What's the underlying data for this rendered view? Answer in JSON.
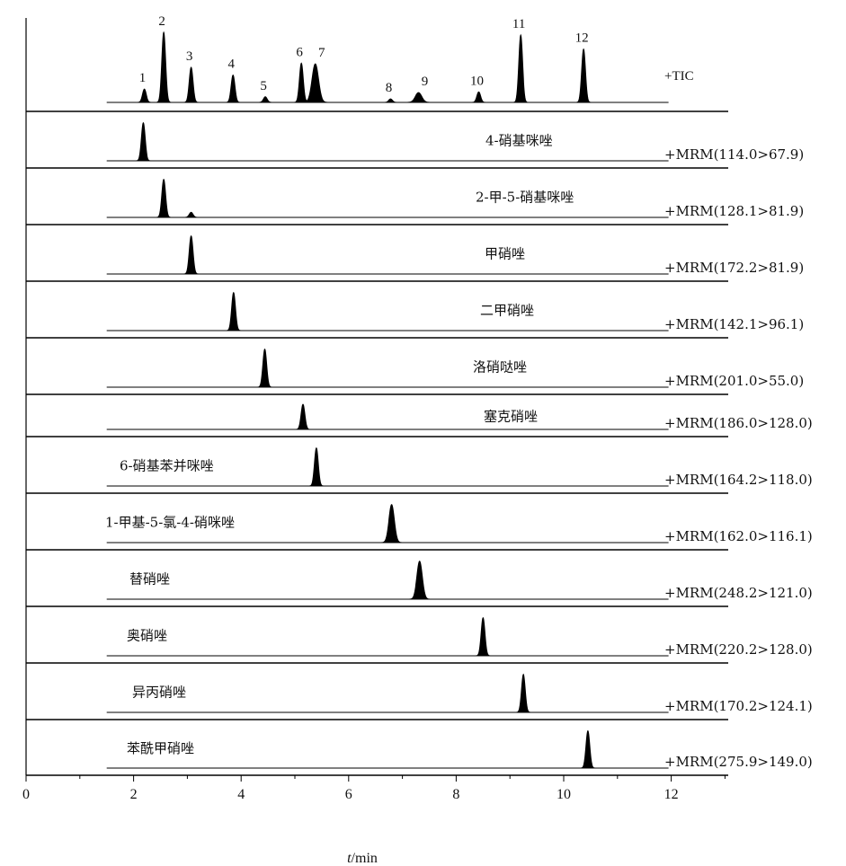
{
  "chart_data": {
    "type": "line",
    "x_axis": {
      "label_italic": "t",
      "label_rest": "/min",
      "range": [
        0,
        13.2
      ],
      "ticks": [
        0,
        2,
        4,
        6,
        8,
        10,
        12
      ],
      "tick_labels": [
        "0",
        "2",
        "4",
        "6",
        "8",
        "10",
        "12"
      ],
      "minor_tick_step": 1
    },
    "baseline_range": [
      1.5,
      11.95
    ],
    "tic": {
      "label": "+TIC",
      "peaks": [
        {
          "id": "1",
          "rt": 2.2,
          "height": 0.19
        },
        {
          "id": "2",
          "rt": 2.56,
          "height": 1.0
        },
        {
          "id": "3",
          "rt": 3.07,
          "height": 0.5
        },
        {
          "id": "4",
          "rt": 3.85,
          "height": 0.39
        },
        {
          "id": "5",
          "rt": 4.45,
          "height": 0.08
        },
        {
          "id": "6",
          "rt": 5.12,
          "height": 0.56
        },
        {
          "id": "7",
          "rt": 5.38,
          "height": 0.55
        },
        {
          "id": "8",
          "rt": 6.78,
          "height": 0.05
        },
        {
          "id": "9",
          "rt": 7.3,
          "height": 0.14
        },
        {
          "id": "10",
          "rt": 8.42,
          "height": 0.15
        },
        {
          "id": "11",
          "rt": 9.2,
          "height": 0.96
        },
        {
          "id": "12",
          "rt": 10.37,
          "height": 0.76
        }
      ]
    },
    "series": [
      {
        "name": "4-硝基咪唑",
        "transition": "+MRM(114.0>67.9)",
        "rt": 2.18,
        "height": 0.9
      },
      {
        "name": "2-甲-5-硝基咪唑",
        "transition": "+MRM(128.1>81.9)",
        "rt": 2.56,
        "height": 0.9,
        "minor_peak": {
          "rt": 3.07,
          "height": 0.12
        }
      },
      {
        "name": "甲硝唑",
        "transition": "+MRM(172.2>81.9)",
        "rt": 3.07,
        "height": 0.9
      },
      {
        "name": "二甲硝唑",
        "transition": "+MRM(142.1>96.1)",
        "rt": 3.86,
        "height": 0.9
      },
      {
        "name": "洛硝哒唑",
        "transition": "+MRM(201.0>55.0)",
        "rt": 4.44,
        "height": 0.9
      },
      {
        "name": "塞克硝唑",
        "transition": "+MRM(186.0>128.0)",
        "rt": 5.15,
        "height": 0.9
      },
      {
        "name": "6-硝基苯并咪唑",
        "transition": "+MRM(164.2>118.0)",
        "rt": 5.4,
        "height": 0.9
      },
      {
        "name": "1-甲基-5-氯-4-硝咪唑",
        "transition": "+MRM(162.0>116.1)",
        "rt": 6.8,
        "height": 0.9
      },
      {
        "name": "替硝唑",
        "transition": "+MRM(248.2>121.0)",
        "rt": 7.32,
        "height": 0.9
      },
      {
        "name": "奥硝唑",
        "transition": "+MRM(220.2>128.0)",
        "rt": 8.5,
        "height": 0.9
      },
      {
        "name": "异丙硝唑",
        "transition": "+MRM(170.2>124.1)",
        "rt": 9.25,
        "height": 0.9
      },
      {
        "name": "苯酰甲硝唑",
        "transition": "+MRM(275.9>149.0)",
        "rt": 10.45,
        "height": 0.9
      }
    ]
  }
}
